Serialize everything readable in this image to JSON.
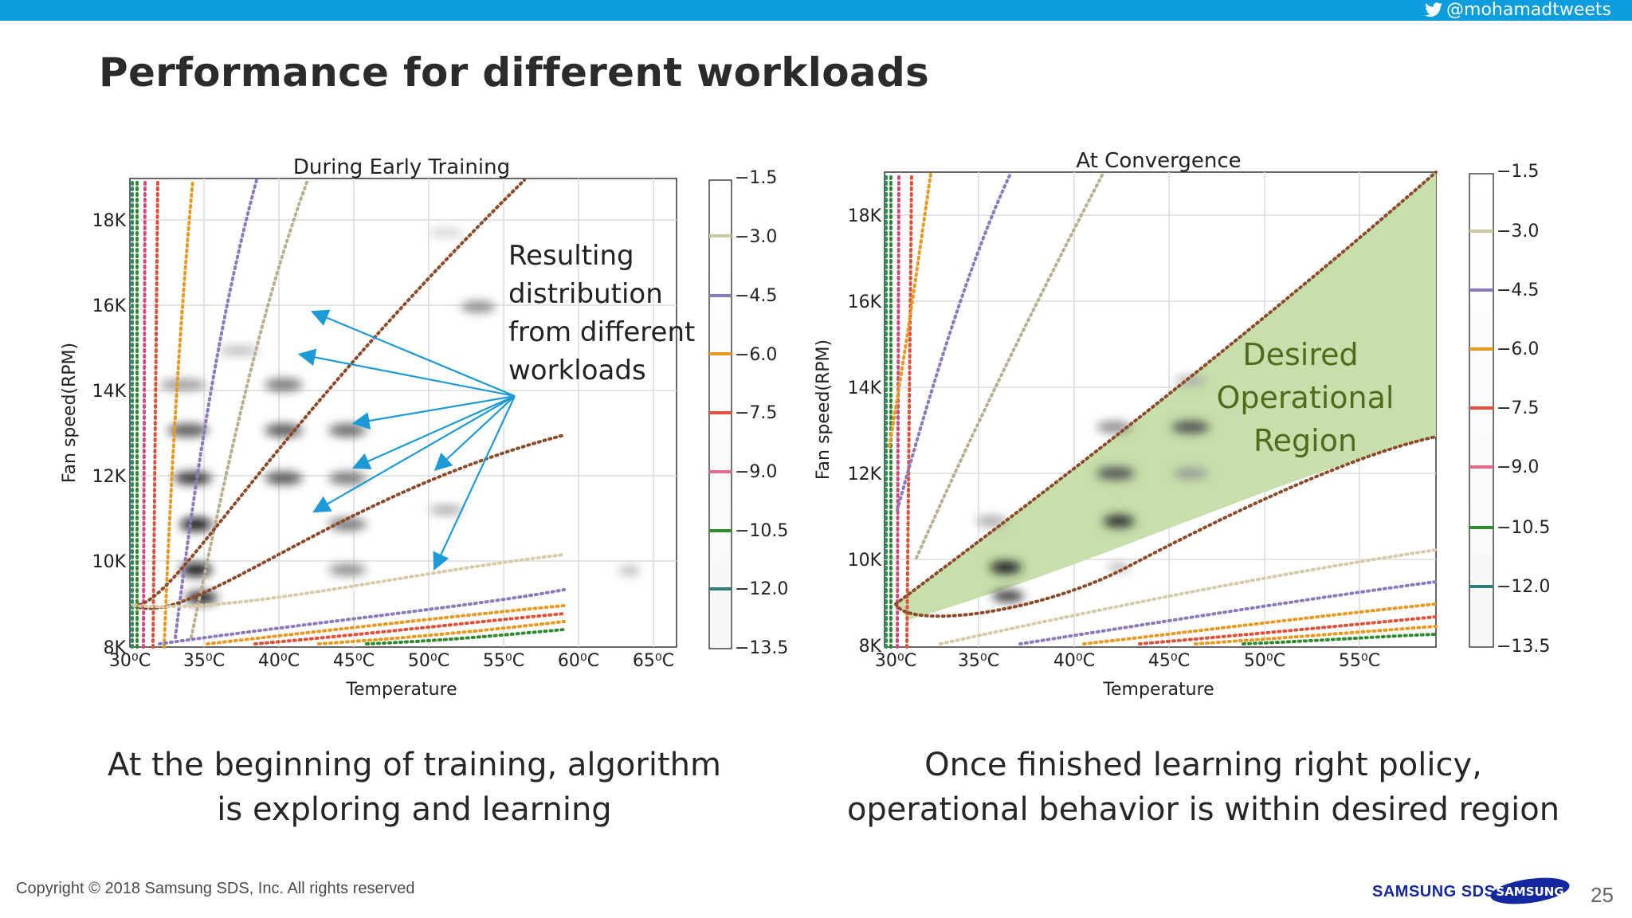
{
  "header": {
    "handle": "@mohamadtweets",
    "title": "Performance for different workloads"
  },
  "chart_data": [
    {
      "type": "heatmap",
      "title": "During Early Training",
      "xlabel": "Temperature",
      "ylabel": "Fan speed(RPM)",
      "x_ticks": [
        "30⁰C",
        "35⁰C",
        "40⁰C",
        "45⁰C",
        "50⁰C",
        "55⁰C",
        "60⁰C",
        "65⁰C"
      ],
      "y_ticks": [
        "8K",
        "10K",
        "12K",
        "14K",
        "16K",
        "18K"
      ],
      "colorbar_ticks": [
        "−1.5",
        "−3.0",
        "−4.5",
        "−6.0",
        "−7.5",
        "−9.0",
        "−10.5",
        "−12.0",
        "−13.5"
      ],
      "annotation": [
        "Resulting",
        "distribution",
        "from different",
        "workloads"
      ]
    },
    {
      "type": "heatmap",
      "title": "At Convergence",
      "xlabel": "Temperature",
      "ylabel": "Fan speed(RPM)",
      "x_ticks": [
        "30⁰C",
        "35⁰C",
        "40⁰C",
        "45⁰C",
        "50⁰C",
        "55⁰C"
      ],
      "y_ticks": [
        "8K",
        "10K",
        "12K",
        "14K",
        "16K",
        "18K"
      ],
      "colorbar_ticks": [
        "−1.5",
        "−3.0",
        "−4.5",
        "−6.0",
        "−7.5",
        "−9.0",
        "−10.5",
        "−12.0",
        "−13.5"
      ],
      "region_label": [
        "Desired",
        "Operational",
        "Region"
      ]
    }
  ],
  "captions": {
    "left": [
      "At the beginning of training, algorithm",
      "is exploring and learning"
    ],
    "right": [
      "Once finished learning right policy,",
      "operational behavior is within desired region"
    ]
  },
  "footer": {
    "copyright": "Copyright © 2018 Samsung SDS, Inc. All rights reserved",
    "logo_text": "SAMSUNG SDS",
    "brand": "SAMSUNG",
    "page_number": "25"
  },
  "colors": {
    "topbar": "#0b9ddd",
    "arrow": "#1c9ad6",
    "region_fill": "#c7dfaa",
    "region_text": "#4f6b1e",
    "contour_brown": "#8b4a28"
  }
}
